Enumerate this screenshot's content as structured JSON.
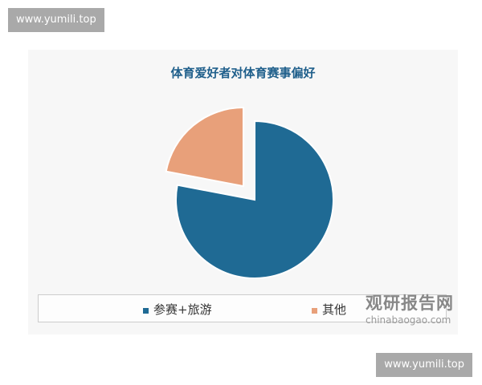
{
  "watermark_top": "www.yumili.top",
  "watermark_bottom": "www.yumili.top",
  "logo": {
    "cn": "观研报告网",
    "en": "chinabaogao.com"
  },
  "chart_data": {
    "type": "pie",
    "title": "体育爱好者对体育赛事偏好",
    "categories": [
      "参赛+旅游",
      "其他"
    ],
    "values": [
      78,
      22
    ],
    "colors": [
      "#1f6a94",
      "#e8a07a"
    ],
    "exploded": [
      "其他"
    ],
    "legend_position": "bottom"
  }
}
